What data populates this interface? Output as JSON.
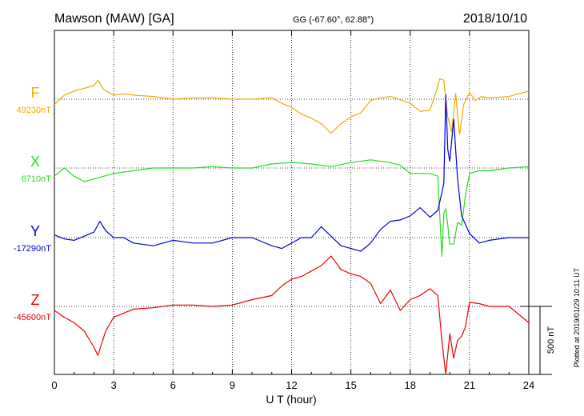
{
  "header": {
    "station": "Mawson (MAW)  [GA]",
    "coords": "GG (-67.60°,  62.88°)",
    "date": "2018/10/10"
  },
  "side_note": "Plotted at 2019/01/29 10:11 UT",
  "chart_data": {
    "type": "line",
    "xlabel": "U T (hour)",
    "xlim": [
      0,
      24
    ],
    "xticks": [
      0,
      3,
      6,
      9,
      12,
      15,
      18,
      21,
      24
    ],
    "grid": true,
    "scale_bar": {
      "label": "500 nT",
      "value_nT": 500
    },
    "series": [
      {
        "name": "F",
        "baseline_label": "49230nT",
        "color": "#f5a800",
        "x": [
          0,
          0.5,
          1,
          1.5,
          2,
          2.2,
          2.5,
          3,
          3.5,
          4,
          5,
          6,
          7,
          8,
          9,
          10,
          11,
          11.5,
          12,
          12.5,
          13,
          13.5,
          14,
          14.5,
          15,
          15.5,
          16,
          16.5,
          17,
          18,
          18.5,
          19,
          19.3,
          19.5,
          19.7,
          19.9,
          20.1,
          20.3,
          20.5,
          20.7,
          21,
          21.3,
          21.6,
          22,
          23,
          24
        ],
        "values": [
          -40,
          30,
          60,
          80,
          100,
          140,
          70,
          30,
          40,
          30,
          20,
          0,
          10,
          10,
          0,
          0,
          10,
          -30,
          -60,
          -110,
          -140,
          -180,
          -250,
          -180,
          -130,
          -100,
          -10,
          10,
          20,
          -30,
          -90,
          -80,
          50,
          150,
          140,
          -130,
          -240,
          40,
          -260,
          -40,
          50,
          -10,
          20,
          10,
          20,
          60
        ]
      },
      {
        "name": "X",
        "baseline_label": "6710nT",
        "color": "#22dd22",
        "x": [
          0,
          0.5,
          1,
          1.5,
          2,
          2.5,
          3,
          4,
          5,
          6,
          7,
          8,
          9,
          10,
          11,
          12,
          13,
          14,
          15,
          16,
          17,
          17.5,
          18,
          18.5,
          19,
          19.4,
          19.6,
          19.7,
          19.8,
          19.9,
          20,
          20.2,
          20.4,
          20.6,
          20.8,
          21,
          21.5,
          22,
          23,
          24
        ],
        "values": [
          -60,
          0,
          -60,
          -100,
          -80,
          -60,
          -40,
          -20,
          0,
          0,
          0,
          10,
          0,
          0,
          30,
          40,
          30,
          10,
          40,
          60,
          40,
          20,
          -40,
          -40,
          -40,
          -60,
          -650,
          -330,
          -300,
          -420,
          -560,
          -560,
          -400,
          -420,
          -200,
          -40,
          -20,
          -20,
          0,
          10
        ]
      },
      {
        "name": "Y",
        "baseline_label": "-17290nT",
        "color": "#0000dd",
        "x": [
          0,
          0.5,
          1,
          1.5,
          2,
          2.3,
          2.6,
          3,
          3.5,
          4,
          5,
          6,
          7,
          8,
          9,
          10,
          11,
          11.5,
          12,
          12.5,
          13,
          13.5,
          14,
          14.5,
          15,
          15.5,
          16,
          16.5,
          17,
          17.5,
          18,
          18.5,
          19,
          19.4,
          19.6,
          19.7,
          19.8,
          19.9,
          20,
          20.2,
          20.4,
          20.6,
          21,
          21.5,
          22,
          23,
          24
        ],
        "values": [
          20,
          -10,
          -20,
          10,
          40,
          120,
          50,
          0,
          0,
          -40,
          -60,
          -20,
          -40,
          -40,
          0,
          0,
          -60,
          -80,
          -40,
          0,
          0,
          80,
          10,
          -60,
          -80,
          -100,
          -40,
          60,
          120,
          130,
          160,
          220,
          150,
          200,
          330,
          400,
          1050,
          650,
          560,
          870,
          430,
          160,
          30,
          -40,
          -20,
          0,
          0
        ]
      },
      {
        "name": "Z",
        "baseline_label": "-45600nT",
        "color": "#ee0000",
        "x": [
          0,
          0.5,
          1,
          1.5,
          2,
          2.2,
          2.6,
          3,
          4,
          5,
          6,
          7,
          8,
          9,
          10,
          11,
          11.5,
          12,
          12.5,
          13,
          13.5,
          14,
          14.5,
          15,
          15.5,
          16,
          16.5,
          17,
          17.5,
          18,
          18.5,
          19,
          19.4,
          19.6,
          19.8,
          20,
          20.2,
          20.4,
          20.6,
          20.8,
          21,
          21.5,
          22,
          23,
          24
        ],
        "values": [
          -30,
          -80,
          -120,
          -180,
          -300,
          -360,
          -180,
          -80,
          -20,
          -10,
          10,
          10,
          0,
          10,
          50,
          80,
          150,
          200,
          220,
          260,
          300,
          370,
          270,
          240,
          220,
          170,
          20,
          120,
          -30,
          50,
          80,
          130,
          80,
          -250,
          -500,
          -200,
          -380,
          -250,
          -220,
          -150,
          30,
          20,
          0,
          0,
          -120
        ]
      }
    ]
  }
}
